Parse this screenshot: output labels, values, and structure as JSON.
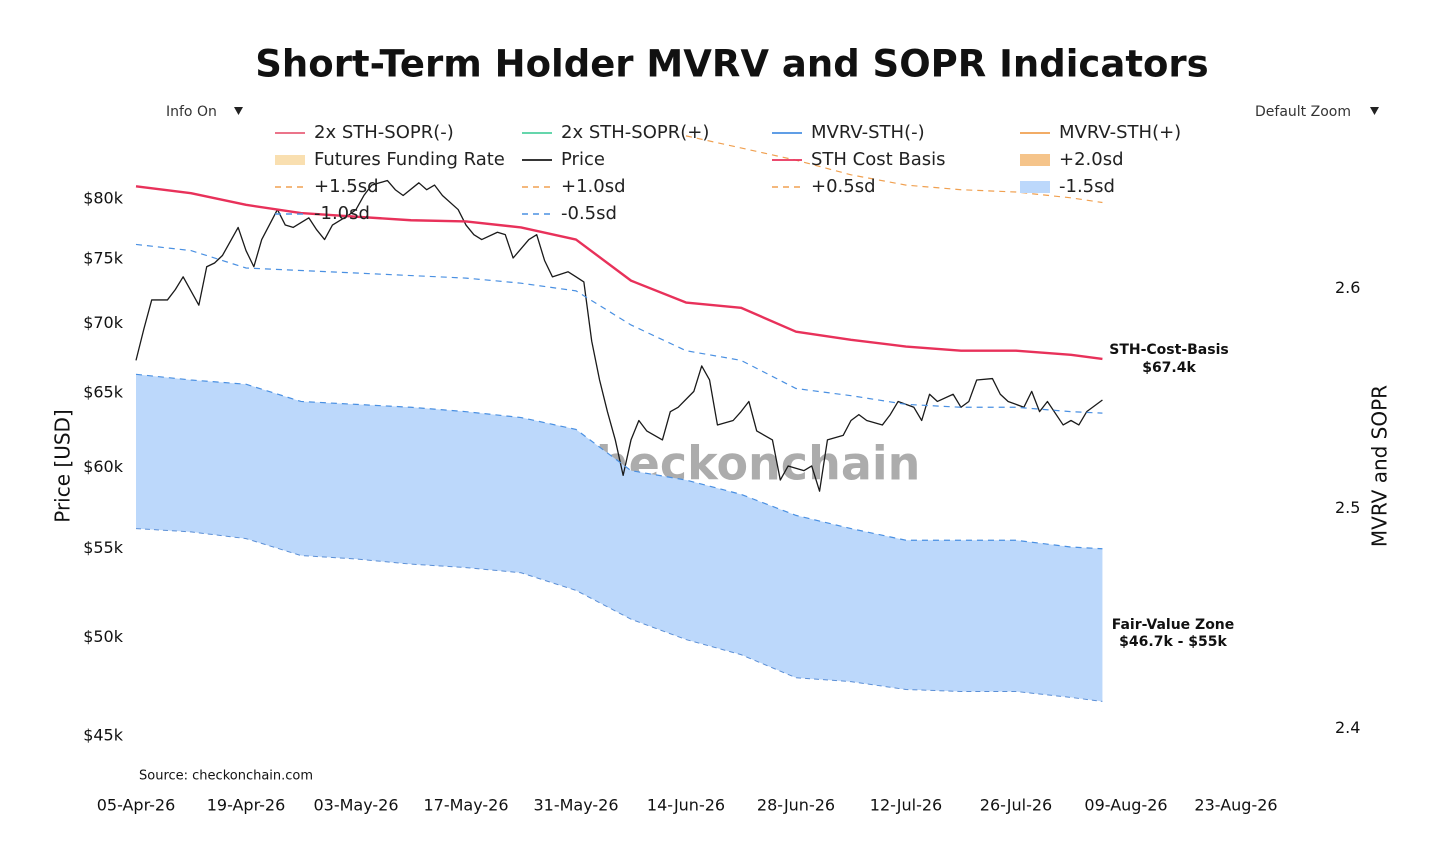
{
  "chart_data": {
    "type": "line",
    "title": "Short-Term Holder MVRV and SOPR Indicators",
    "controls": [
      "Info On",
      "Default Zoom"
    ],
    "y_label": "Price [USD]",
    "y2_label": "MVRV and SOPR",
    "source": "Source: checkonchain.com",
    "watermark": "_checkonchain",
    "log_y": true,
    "grid": false,
    "legend": "top",
    "xlim": [
      "2026-04-05",
      "2026-08-23"
    ],
    "xticks": [
      {
        "value": "2026-04-05",
        "label": "05-Apr-26"
      },
      {
        "value": "2026-04-19",
        "label": "19-Apr-26"
      },
      {
        "value": "2026-05-03",
        "label": "03-May-26"
      },
      {
        "value": "2026-05-17",
        "label": "17-May-26"
      },
      {
        "value": "2026-05-31",
        "label": "31-May-26"
      },
      {
        "value": "2026-06-14",
        "label": "14-Jun-26"
      },
      {
        "value": "2026-06-28",
        "label": "28-Jun-26"
      },
      {
        "value": "2026-07-12",
        "label": "12-Jul-26"
      },
      {
        "value": "2026-07-26",
        "label": "26-Jul-26"
      },
      {
        "value": "2026-08-09",
        "label": "09-Aug-26"
      },
      {
        "value": "2026-08-23",
        "label": "23-Aug-26"
      }
    ],
    "ylim": [
      44000,
      89000
    ],
    "yticks": [
      {
        "value": 45000,
        "label": "$45k"
      },
      {
        "value": 50000,
        "label": "$50k"
      },
      {
        "value": 55000,
        "label": "$55k"
      },
      {
        "value": 60000,
        "label": "$60k"
      },
      {
        "value": 65000,
        "label": "$65k"
      },
      {
        "value": 70000,
        "label": "$70k"
      },
      {
        "value": 75000,
        "label": "$75k"
      },
      {
        "value": 80000,
        "label": "$80k"
      }
    ],
    "y2lim": [
      2.387,
      2.686
    ],
    "y2ticks": [
      2.4,
      2.5,
      2.6
    ],
    "series": [
      {
        "name": "2x STH-SOPR(-)",
        "color": "#e8607a",
        "style": "line"
      },
      {
        "name": "2x STH-SOPR(+)",
        "color": "#4fd1a0",
        "style": "line"
      },
      {
        "name": "MVRV-STH(-)",
        "color": "#4a90e2",
        "style": "line"
      },
      {
        "name": "MVRV-STH(+)",
        "color": "#f0a050",
        "style": "line"
      },
      {
        "name": "Futures Funding Rate",
        "color": "#f9dfb0",
        "style": "band"
      },
      {
        "name": "Price",
        "color": "#1a1a1a",
        "style": "line",
        "x": [
          "2026-04-05",
          "2026-04-06",
          "2026-04-07",
          "2026-04-09",
          "2026-04-10",
          "2026-04-11",
          "2026-04-13",
          "2026-04-14",
          "2026-04-15",
          "2026-04-16",
          "2026-04-18",
          "2026-04-19",
          "2026-04-20",
          "2026-04-21",
          "2026-04-23",
          "2026-04-24",
          "2026-04-25",
          "2026-04-27",
          "2026-04-28",
          "2026-04-29",
          "2026-04-30",
          "2026-05-02",
          "2026-05-03",
          "2026-05-04",
          "2026-05-05",
          "2026-05-07",
          "2026-05-08",
          "2026-05-09",
          "2026-05-11",
          "2026-05-12",
          "2026-05-13",
          "2026-05-14",
          "2026-05-16",
          "2026-05-17",
          "2026-05-18",
          "2026-05-19",
          "2026-05-21",
          "2026-05-22",
          "2026-05-23",
          "2026-05-25",
          "2026-05-26",
          "2026-05-27",
          "2026-05-28",
          "2026-05-30",
          "2026-05-31",
          "2026-06-01",
          "2026-06-02",
          "2026-06-03",
          "2026-06-04",
          "2026-06-05",
          "2026-06-06",
          "2026-06-07",
          "2026-06-08",
          "2026-06-09",
          "2026-06-11",
          "2026-06-12",
          "2026-06-13",
          "2026-06-15",
          "2026-06-16",
          "2026-06-17",
          "2026-06-18",
          "2026-06-20",
          "2026-06-21",
          "2026-06-22",
          "2026-06-23",
          "2026-06-25",
          "2026-06-26",
          "2026-06-27",
          "2026-06-29",
          "2026-06-30",
          "2026-07-01",
          "2026-07-02",
          "2026-07-04",
          "2026-07-05",
          "2026-07-06",
          "2026-07-07",
          "2026-07-09",
          "2026-07-10",
          "2026-07-11",
          "2026-07-13",
          "2026-07-14",
          "2026-07-15",
          "2026-07-16",
          "2026-07-18",
          "2026-07-19",
          "2026-07-20",
          "2026-07-21",
          "2026-07-23",
          "2026-07-24",
          "2026-07-25",
          "2026-07-27",
          "2026-07-28",
          "2026-07-29",
          "2026-07-30",
          "2026-08-01",
          "2026-08-02",
          "2026-08-03",
          "2026-08-04",
          "2026-08-06"
        ],
        "values": [
          67300,
          69600,
          71800,
          71800,
          72600,
          73600,
          71400,
          74400,
          74700,
          75300,
          77600,
          75700,
          74400,
          76600,
          79100,
          77800,
          77600,
          78400,
          77400,
          76600,
          77800,
          78600,
          79100,
          80300,
          81200,
          81600,
          80800,
          80300,
          81400,
          80800,
          81200,
          80300,
          79100,
          77800,
          77000,
          76600,
          77200,
          77000,
          75100,
          76600,
          77000,
          74900,
          73600,
          74000,
          73600,
          73200,
          68700,
          65900,
          63700,
          61800,
          59500,
          61800,
          63100,
          62400,
          61800,
          63700,
          64000,
          65100,
          66900,
          65900,
          62800,
          63100,
          63700,
          64400,
          62400,
          61800,
          59200,
          60100,
          59800,
          60100,
          58500,
          61800,
          62100,
          63100,
          63500,
          63100,
          62800,
          63500,
          64400,
          64000,
          63100,
          64900,
          64400,
          64900,
          64000,
          64400,
          65900,
          66000,
          64900,
          64400,
          64000,
          65100,
          63700,
          64400,
          62800,
          63100,
          62800,
          63700,
          64500
        ]
      },
      {
        "name": "STH Cost Basis",
        "color": "#e8315a",
        "style": "line",
        "x": [
          "2026-04-05",
          "2026-04-12",
          "2026-04-19",
          "2026-04-26",
          "2026-05-03",
          "2026-05-10",
          "2026-05-17",
          "2026-05-24",
          "2026-05-31",
          "2026-06-07",
          "2026-06-14",
          "2026-06-21",
          "2026-06-28",
          "2026-07-05",
          "2026-07-12",
          "2026-07-19",
          "2026-07-26",
          "2026-08-02",
          "2026-08-06"
        ],
        "values": [
          81100,
          80500,
          79500,
          78800,
          78500,
          78200,
          78100,
          77600,
          76600,
          73300,
          71600,
          71200,
          69400,
          68800,
          68300,
          68000,
          68000,
          67700,
          67400
        ]
      },
      {
        "name": "+2.0sd",
        "color": "#f5c48a",
        "style": "fill"
      },
      {
        "name": "+1.5sd",
        "color": "#f0a050",
        "style": "dash"
      },
      {
        "name": "+1.0sd",
        "color": "#f0a050",
        "style": "dash"
      },
      {
        "name": "+0.5sd",
        "color": "#f0a050",
        "style": "dash",
        "x": [
          "2026-06-14",
          "2026-06-21",
          "2026-06-28",
          "2026-07-05",
          "2026-07-12",
          "2026-07-19",
          "2026-07-26",
          "2026-08-02",
          "2026-08-06"
        ],
        "values": [
          85600,
          84500,
          83400,
          82100,
          81200,
          80800,
          80600,
          80100,
          79700
        ]
      },
      {
        "name": "-1.5sd",
        "color": "#bcd8fb",
        "style": "fill",
        "x": [
          "2026-04-05",
          "2026-04-12",
          "2026-04-19",
          "2026-04-26",
          "2026-05-03",
          "2026-05-10",
          "2026-05-17",
          "2026-05-24",
          "2026-05-31",
          "2026-06-07",
          "2026-06-14",
          "2026-06-21",
          "2026-06-28",
          "2026-07-05",
          "2026-07-12",
          "2026-07-19",
          "2026-07-26",
          "2026-08-02",
          "2026-08-06"
        ],
        "values": [
          56200,
          56000,
          55600,
          54600,
          54400,
          54100,
          53900,
          53600,
          52600,
          51000,
          49900,
          49100,
          47900,
          47700,
          47300,
          47200,
          47200,
          46900,
          46700
        ]
      },
      {
        "name": "-1.0sd",
        "color": "#4a90e2",
        "style": "dash",
        "x": [
          "2026-04-05",
          "2026-04-12",
          "2026-04-19",
          "2026-04-26",
          "2026-05-03",
          "2026-05-10",
          "2026-05-17",
          "2026-05-24",
          "2026-05-31",
          "2026-06-07",
          "2026-06-14",
          "2026-06-21",
          "2026-06-28",
          "2026-07-05",
          "2026-07-12",
          "2026-07-19",
          "2026-07-26",
          "2026-08-02",
          "2026-08-06"
        ],
        "values": [
          66300,
          65900,
          65600,
          64400,
          64200,
          64000,
          63700,
          63300,
          62500,
          59800,
          59200,
          58300,
          57000,
          56200,
          55500,
          55500,
          55500,
          55100,
          55000
        ]
      },
      {
        "name": "-0.5sd",
        "color": "#4a90e2",
        "style": "dash",
        "x": [
          "2026-04-05",
          "2026-04-12",
          "2026-04-19",
          "2026-04-26",
          "2026-05-03",
          "2026-05-10",
          "2026-05-17",
          "2026-05-24",
          "2026-05-31",
          "2026-06-07",
          "2026-06-14",
          "2026-06-21",
          "2026-06-28",
          "2026-07-05",
          "2026-07-12",
          "2026-07-19",
          "2026-07-26",
          "2026-08-02",
          "2026-08-06"
        ],
        "values": [
          76200,
          75700,
          74300,
          74100,
          73900,
          73700,
          73500,
          73100,
          72500,
          69900,
          68000,
          67300,
          65300,
          64800,
          64200,
          64000,
          64000,
          63700,
          63600
        ]
      }
    ],
    "annotations": [
      {
        "lines": [
          "STH-Cost-Basis",
          "$67.4k"
        ],
        "color": "#e8203c"
      },
      {
        "lines": [
          "Fair-Value Zone",
          "$46.7k - $55k"
        ],
        "color": "#1a73e8"
      }
    ]
  }
}
